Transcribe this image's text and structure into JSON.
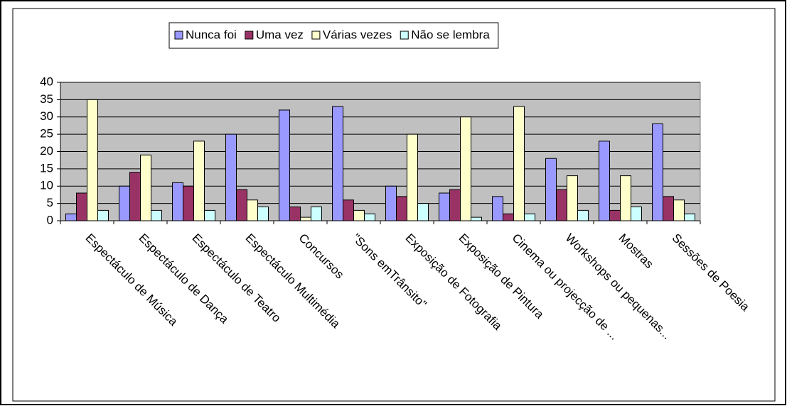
{
  "chart_data": {
    "type": "bar",
    "categories": [
      "Espectáculo de Música",
      "Espectáculo de Dança",
      "Espectáculo de Teatro",
      "Espectáculo Multimédia",
      "Concursos",
      "\"Sons emTrânsito\"",
      "Exposição de Fotografia",
      "Exposição de Pintura",
      "Cinema ou projecção de ...",
      "Workshops ou pequenas...",
      "Mostras",
      "Sessões de Poesia"
    ],
    "series": [
      {
        "name": "Nunca foi",
        "color": "#9999ff",
        "values": [
          2,
          10,
          11,
          25,
          32,
          33,
          10,
          8,
          7,
          18,
          23,
          28
        ]
      },
      {
        "name": "Uma vez",
        "color": "#993366",
        "values": [
          8,
          14,
          10,
          9,
          4,
          6,
          7,
          9,
          2,
          9,
          3,
          7
        ]
      },
      {
        "name": "Várias vezes",
        "color": "#ffffcc",
        "values": [
          35,
          19,
          23,
          6,
          1,
          3,
          25,
          30,
          33,
          13,
          13,
          6
        ]
      },
      {
        "name": "Não se lembra",
        "color": "#ccffff",
        "values": [
          3,
          3,
          3,
          4,
          4,
          2,
          5,
          1,
          2,
          3,
          4,
          2
        ]
      }
    ],
    "ylim": [
      0,
      40
    ],
    "yticks": [
      0,
      5,
      10,
      15,
      20,
      25,
      30,
      35,
      40
    ],
    "grid": true,
    "legend": "top",
    "plot_background": "#c0c0c0"
  }
}
